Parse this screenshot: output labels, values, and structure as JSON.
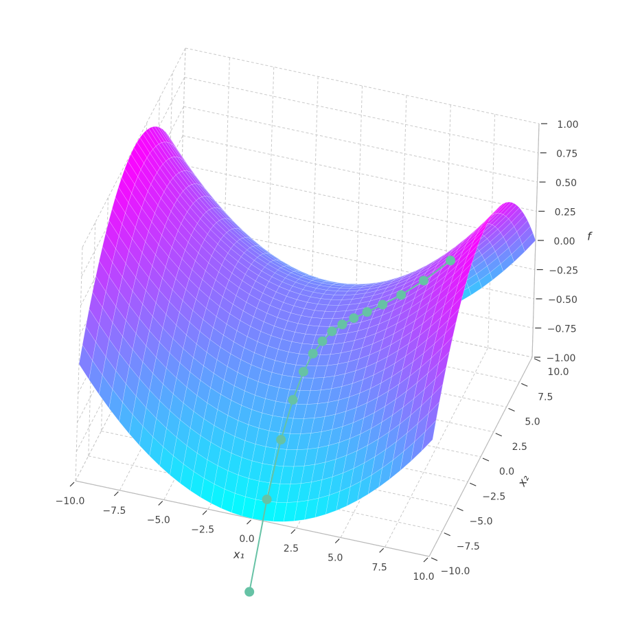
{
  "chart_data": {
    "type": "surface3d",
    "x_label": "x₁",
    "y_label": "x₂",
    "z_label": "f",
    "xlim": [
      -10,
      10
    ],
    "ylim": [
      -10,
      10
    ],
    "zlim": [
      -1,
      1
    ],
    "xticks": [
      {
        "value": -10,
        "label": "−10.0"
      },
      {
        "value": -7.5,
        "label": "−7.5"
      },
      {
        "value": -5,
        "label": "−5.0"
      },
      {
        "value": -2.5,
        "label": "−2.5"
      },
      {
        "value": 0,
        "label": "0.0"
      },
      2.5,
      {
        "value": 5,
        "label": "5.0"
      },
      7.5,
      {
        "value": 10,
        "label": "10.0"
      }
    ],
    "yticks": [
      {
        "value": -10,
        "label": "−10.0"
      },
      {
        "value": -7.5,
        "label": "−7.5"
      },
      {
        "value": -5,
        "label": "−5.0"
      },
      {
        "value": -2.5,
        "label": "−2.5"
      },
      {
        "value": 0,
        "label": "0.0"
      },
      2.5,
      {
        "value": 5,
        "label": "5.0"
      },
      7.5,
      {
        "value": 10,
        "label": "10.0"
      }
    ],
    "zticks": [
      {
        "value": -1,
        "label": "−1.00"
      },
      {
        "value": -0.75,
        "label": "−0.75"
      },
      {
        "value": -0.5,
        "label": "−0.50"
      },
      {
        "value": -0.25,
        "label": "−0.25"
      },
      {
        "value": 0,
        "label": "0.00"
      },
      0.25,
      {
        "value": 0.5,
        "label": "0.50"
      },
      0.75,
      {
        "value": 1,
        "label": "1.00"
      }
    ],
    "colormap": "cool",
    "grid": true,
    "series": [
      {
        "color": "#66c2a5",
        "x": [
          0.5,
          0.61,
          0.74,
          0.91,
          1.11,
          1.35,
          1.65,
          2.01,
          2.45,
          2.99,
          3.65,
          4.45,
          5.43,
          6.63,
          8.08
        ],
        "y": [
          -12,
          -9.36,
          -7.3,
          -5.7,
          -4.44,
          -3.47,
          -2.7,
          -2.11,
          -1.65,
          -1.28,
          -1.0,
          -0.78,
          -0.61,
          -0.47,
          -0.37
        ],
        "z": [
          -1.44,
          -0.87,
          -0.53,
          -0.32,
          -0.18,
          -0.1,
          -0.05,
          -0.004,
          0.03,
          0.07,
          0.12,
          0.19,
          0.29,
          0.44,
          0.65
        ]
      }
    ]
  }
}
